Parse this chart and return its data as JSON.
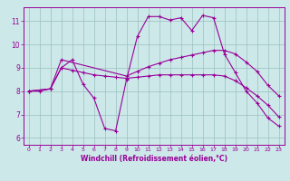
{
  "xlabel": "Windchill (Refroidissement éolien,°C)",
  "background_color": "#cce8e8",
  "line_color": "#990099",
  "xlim": [
    -0.5,
    23.5
  ],
  "ylim": [
    5.7,
    11.6
  ],
  "xticks": [
    0,
    1,
    2,
    3,
    4,
    5,
    6,
    7,
    8,
    9,
    10,
    11,
    12,
    13,
    14,
    15,
    16,
    17,
    18,
    19,
    20,
    21,
    22,
    23
  ],
  "yticks": [
    6,
    7,
    8,
    9,
    10,
    11
  ],
  "line1_x": [
    0,
    1,
    2,
    3,
    4,
    5,
    6,
    7,
    8,
    9,
    10,
    11,
    12,
    13,
    14,
    15,
    16,
    17,
    18,
    19,
    20,
    21,
    22,
    23
  ],
  "line1_y": [
    8.0,
    8.0,
    8.1,
    9.0,
    9.35,
    8.3,
    7.7,
    6.4,
    6.3,
    8.5,
    10.35,
    11.2,
    11.2,
    11.05,
    11.15,
    10.6,
    11.25,
    11.15,
    9.6,
    8.8,
    8.0,
    7.5,
    6.85,
    6.5
  ],
  "line2_x": [
    0,
    2,
    3,
    9,
    10,
    11,
    12,
    13,
    14,
    15,
    16,
    17,
    18,
    19,
    20,
    21,
    22,
    23
  ],
  "line2_y": [
    8.0,
    8.1,
    9.35,
    8.65,
    8.85,
    9.05,
    9.2,
    9.35,
    9.45,
    9.55,
    9.65,
    9.75,
    9.75,
    9.6,
    9.25,
    8.85,
    8.25,
    7.8
  ],
  "line3_x": [
    0,
    2,
    3,
    4,
    5,
    6,
    7,
    8,
    9,
    10,
    11,
    12,
    13,
    14,
    15,
    16,
    17,
    18,
    19,
    20,
    21,
    22,
    23
  ],
  "line3_y": [
    8.0,
    8.1,
    9.0,
    8.9,
    8.8,
    8.7,
    8.65,
    8.6,
    8.55,
    8.6,
    8.65,
    8.7,
    8.7,
    8.7,
    8.7,
    8.7,
    8.7,
    8.65,
    8.45,
    8.15,
    7.8,
    7.4,
    6.9
  ]
}
